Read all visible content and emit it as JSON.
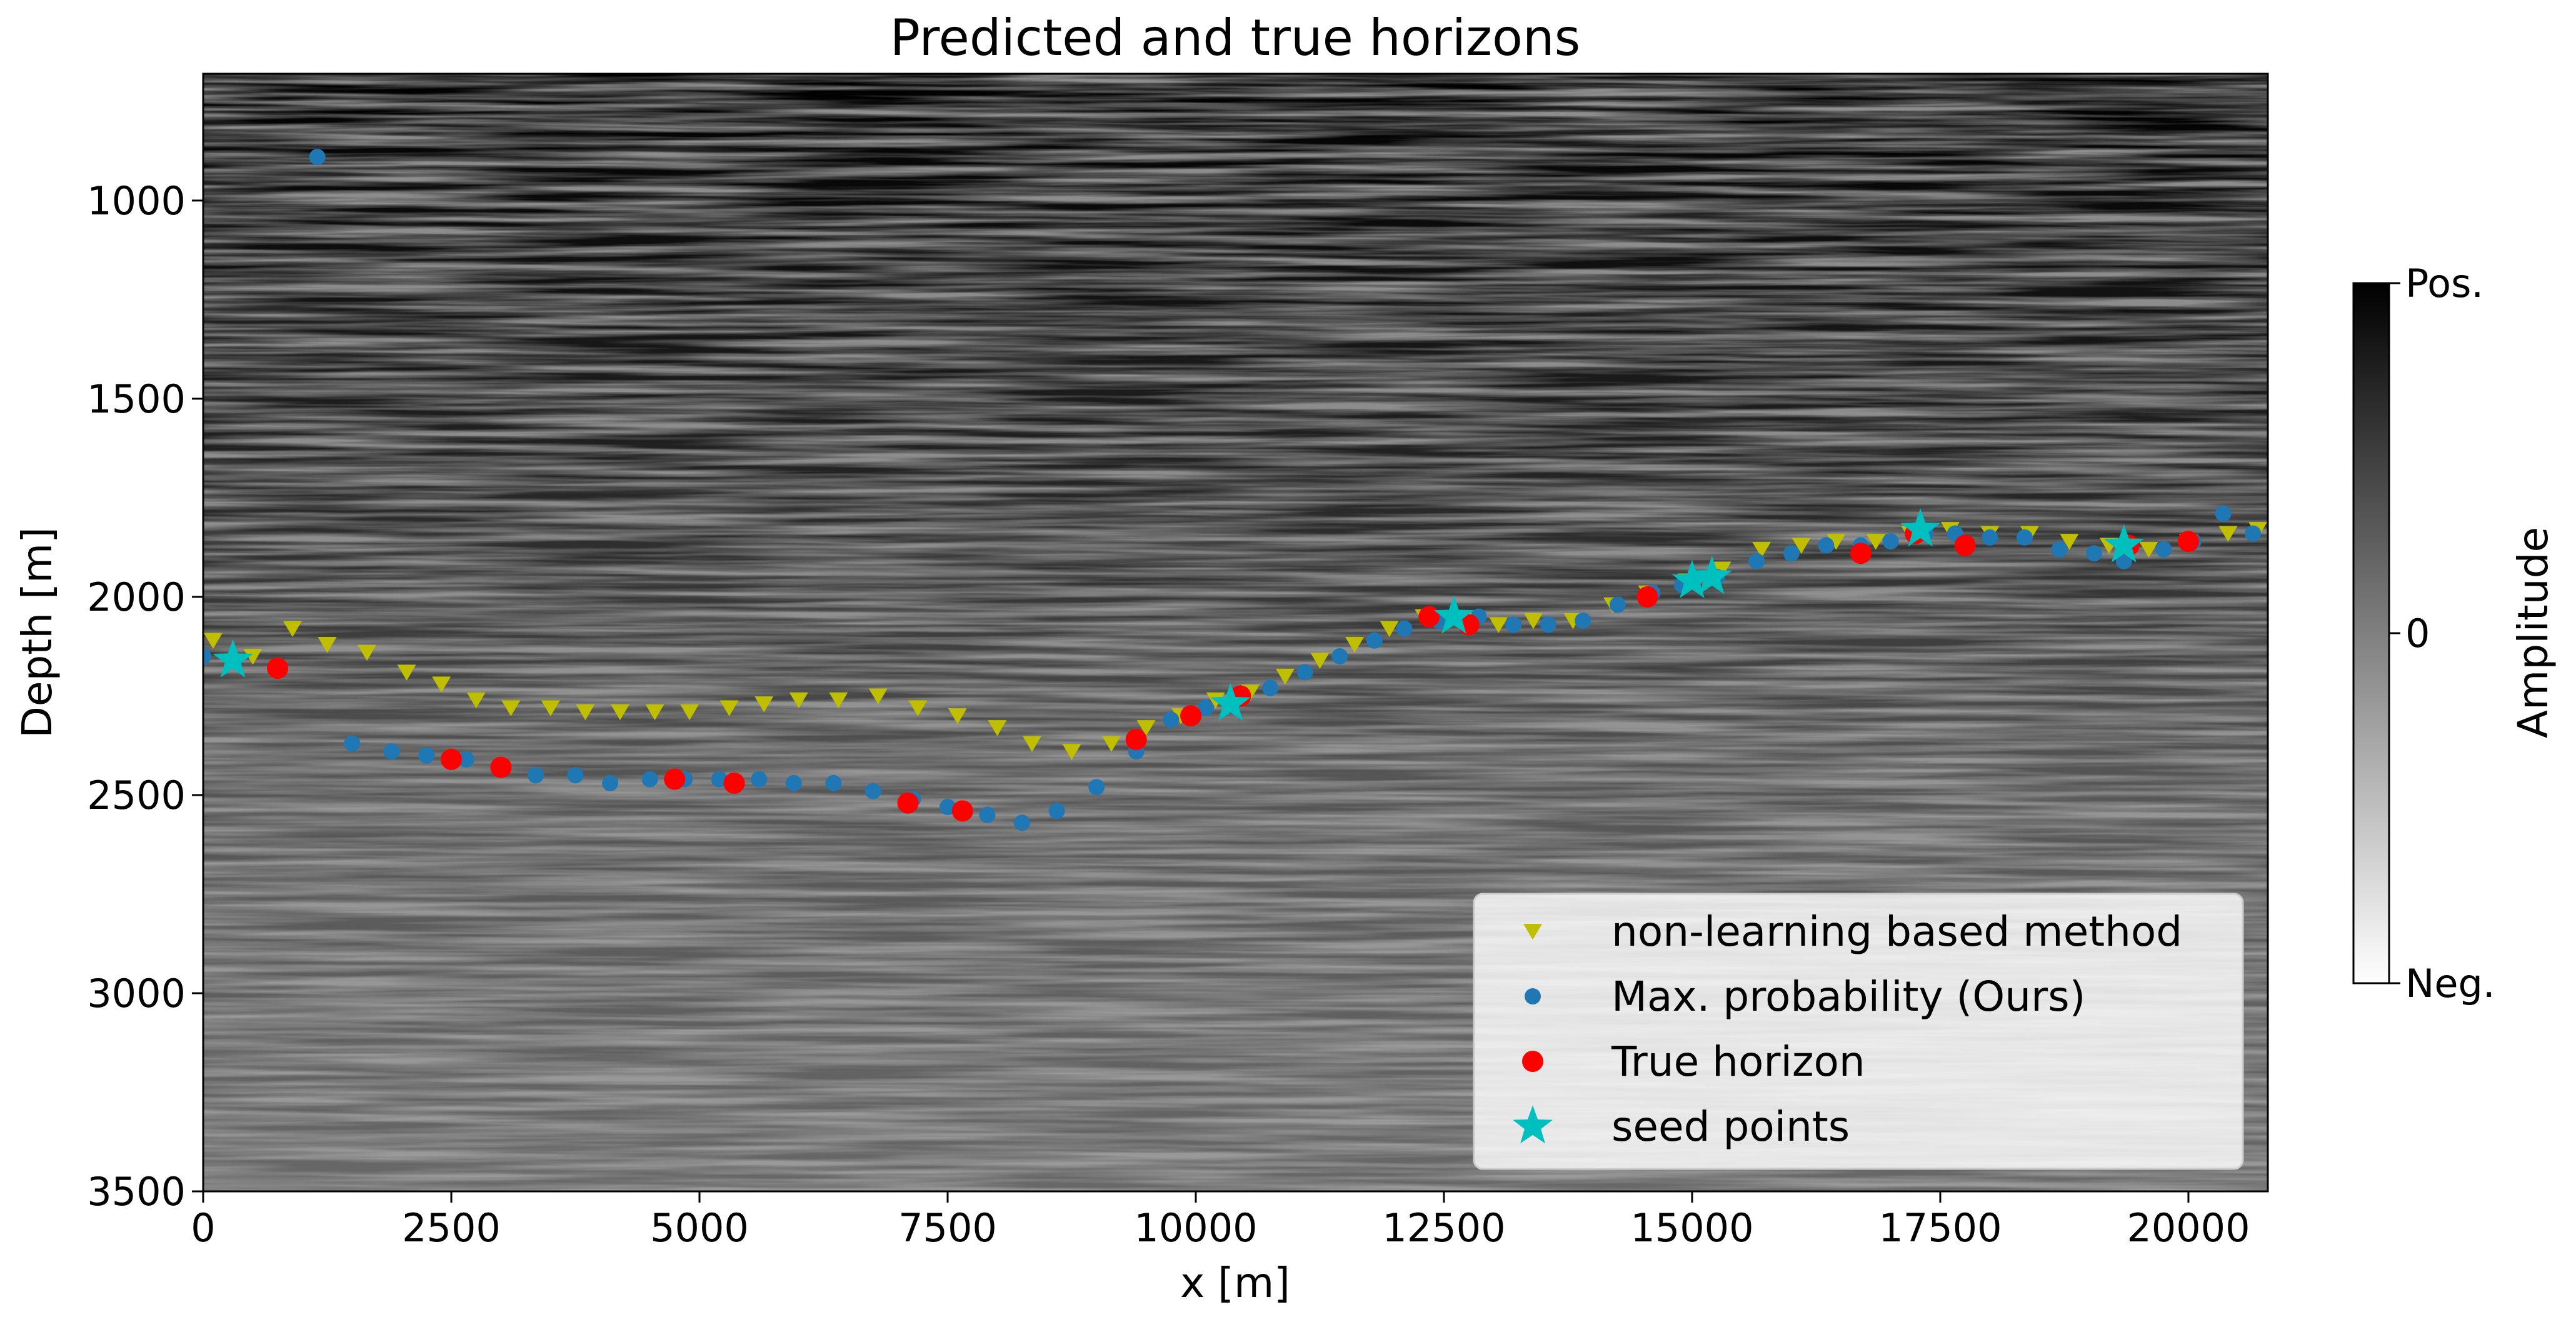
{
  "chart_data": {
    "type": "scatter",
    "title": "Predicted and true horizons",
    "xlabel": "x [m]",
    "ylabel": "Depth [m]",
    "xlim": [
      0,
      20800
    ],
    "ylim": [
      3500,
      680
    ],
    "y_inverted": true,
    "x_ticks": [
      "0",
      "2500",
      "5000",
      "7500",
      "10000",
      "12500",
      "15000",
      "17500",
      "20000"
    ],
    "x_tick_values": [
      0,
      2500,
      5000,
      7500,
      10000,
      12500,
      15000,
      17500,
      20000
    ],
    "y_ticks": [
      "1000",
      "1500",
      "2000",
      "2500",
      "3000",
      "3500"
    ],
    "y_tick_values": [
      1000,
      1500,
      2000,
      2500,
      3000,
      3500
    ],
    "background": "grayscale seismic amplitude section",
    "grid": false,
    "legend_position": "lower-right",
    "colorbar": {
      "label": "Amplitude",
      "ticks": [
        "Pos.",
        "0",
        "Neg."
      ],
      "colors": [
        "#000000",
        "#ffffff"
      ]
    },
    "series": [
      {
        "name": "non-learning based method",
        "marker": "triangle-down",
        "color": "#bfbf00",
        "x": [
          100,
          500,
          900,
          1250,
          1650,
          2050,
          2400,
          2750,
          3100,
          3500,
          3850,
          4200,
          4550,
          4900,
          5300,
          5650,
          6000,
          6400,
          6800,
          7200,
          7600,
          8000,
          8350,
          8750,
          9150,
          9500,
          9850,
          10200,
          10550,
          10900,
          11250,
          11600,
          11950,
          12300,
          12700,
          13050,
          13400,
          13800,
          14200,
          14550,
          14950,
          15300,
          15700,
          16100,
          16450,
          16850,
          17200,
          17600,
          18000,
          18400,
          18800,
          19200,
          19600,
          20000,
          20400,
          20700
        ],
        "y": [
          2110,
          2150,
          2080,
          2120,
          2140,
          2190,
          2220,
          2260,
          2280,
          2280,
          2290,
          2290,
          2290,
          2290,
          2280,
          2270,
          2260,
          2260,
          2250,
          2280,
          2300,
          2330,
          2370,
          2390,
          2370,
          2330,
          2300,
          2260,
          2240,
          2200,
          2160,
          2120,
          2080,
          2050,
          2060,
          2070,
          2060,
          2060,
          2020,
          1990,
          1960,
          1930,
          1880,
          1870,
          1860,
          1860,
          1840,
          1830,
          1840,
          1840,
          1860,
          1870,
          1880,
          1860,
          1840,
          1830
        ]
      },
      {
        "name": "Max. probability (Ours)",
        "marker": "circle",
        "color": "#1f77b4",
        "x": [
          1150,
          1500,
          1900,
          2250,
          2650,
          3000,
          3350,
          3750,
          4100,
          4500,
          4850,
          5200,
          5600,
          5950,
          6350,
          6750,
          7150,
          7500,
          7900,
          8250,
          8600,
          9000,
          9400,
          9750,
          10100,
          10400,
          10750,
          11100,
          11450,
          11800,
          12100,
          12450,
          12850,
          13200,
          13550,
          13900,
          14250,
          14600,
          14900,
          15250,
          15650,
          16000,
          16350,
          16700,
          17000,
          17350,
          17650,
          18000,
          18350,
          18700,
          19050,
          19350,
          19750,
          20050,
          20350,
          20650,
          0
        ],
        "y": [
          890,
          2370,
          2390,
          2400,
          2410,
          2430,
          2450,
          2450,
          2470,
          2460,
          2460,
          2460,
          2460,
          2470,
          2470,
          2490,
          2510,
          2530,
          2550,
          2570,
          2540,
          2480,
          2390,
          2310,
          2280,
          2260,
          2230,
          2190,
          2150,
          2110,
          2080,
          2060,
          2050,
          2070,
          2070,
          2060,
          2020,
          1990,
          1970,
          1950,
          1910,
          1890,
          1870,
          1870,
          1860,
          1840,
          1840,
          1850,
          1850,
          1880,
          1890,
          1910,
          1880,
          1860,
          1790,
          1840,
          2150
        ]
      },
      {
        "name": "True horizon",
        "marker": "circle",
        "color": "#ff0000",
        "x": [
          750,
          2500,
          3000,
          4750,
          5350,
          7100,
          7650,
          9400,
          9950,
          10450,
          12350,
          12750,
          14550,
          16700,
          17250,
          17750,
          19400,
          20000
        ],
        "y": [
          2180,
          2410,
          2430,
          2460,
          2470,
          2520,
          2540,
          2360,
          2300,
          2250,
          2050,
          2070,
          2000,
          1890,
          1840,
          1870,
          1870,
          1860
        ]
      },
      {
        "name": "seed points",
        "marker": "star",
        "color": "#00bfbf",
        "x": [
          300,
          10350,
          12600,
          15000,
          15200,
          17300,
          19350
        ],
        "y": [
          2160,
          2270,
          2050,
          1960,
          1950,
          1830,
          1870
        ]
      }
    ]
  }
}
